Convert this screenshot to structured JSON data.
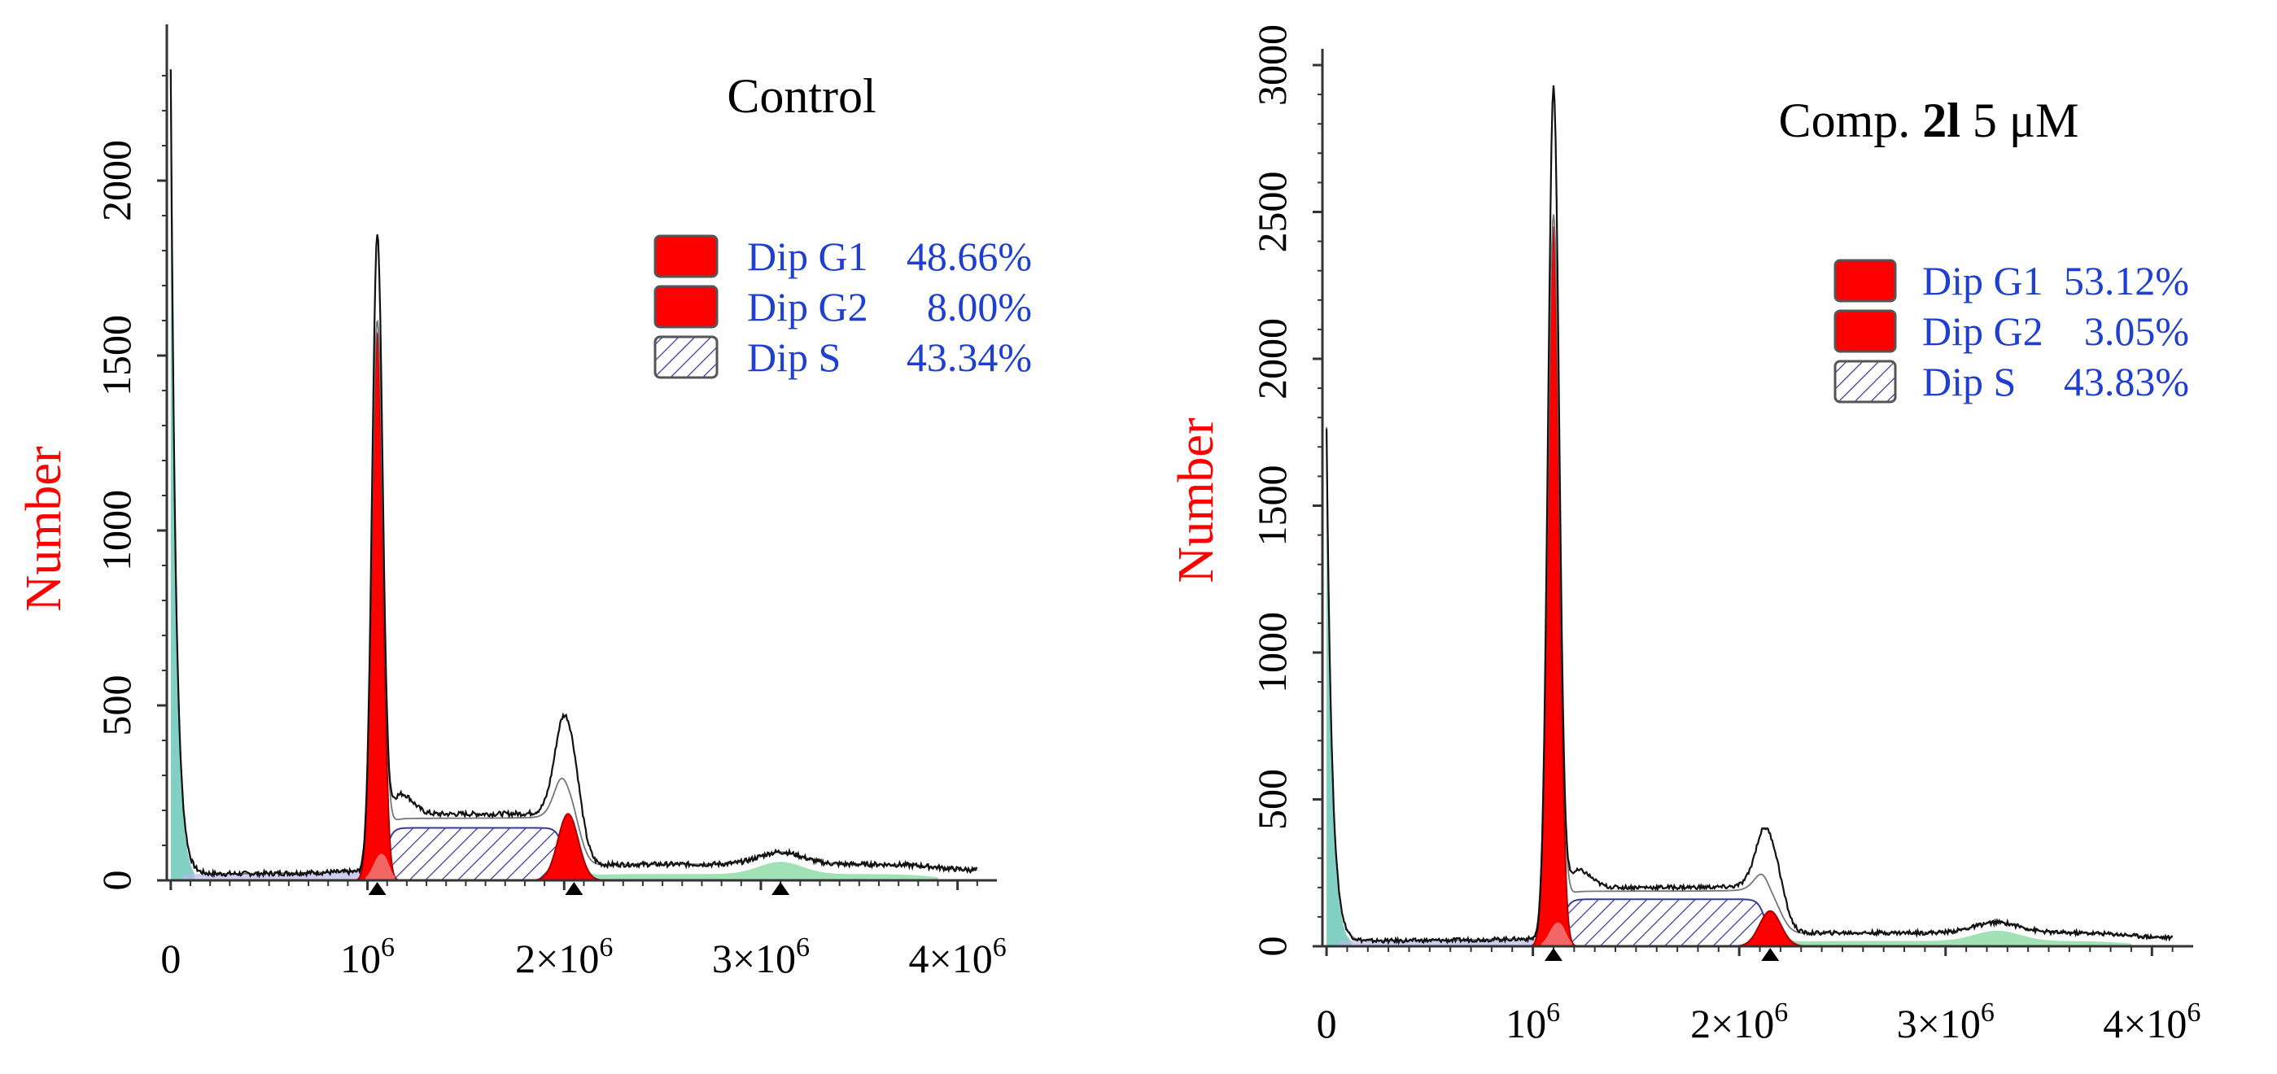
{
  "colors": {
    "red": "#ff0000",
    "legend_blue": "#1f3fd0",
    "teal": "#6cc8b8",
    "green": "#8fdca8",
    "lavender": "#b8b8e8",
    "hatch": "#3a3a9a",
    "axis": "#333333",
    "curve": "#111111"
  },
  "chart_data": [
    {
      "type": "area",
      "title": "Control",
      "ylabel": "Number",
      "xlabel": "",
      "xlim": [
        -20000,
        4200000
      ],
      "ylim": [
        0,
        2400
      ],
      "x_ticks": [
        {
          "value": 0,
          "label": "0"
        },
        {
          "value": 1000000,
          "label": "10",
          "sup": "6"
        },
        {
          "value": 2000000,
          "label": "2×10",
          "sup": "6"
        },
        {
          "value": 3000000,
          "label": "3×10",
          "sup": "6"
        },
        {
          "value": 4000000,
          "label": "4×10",
          "sup": "6"
        }
      ],
      "y_ticks": [
        0,
        500,
        1000,
        1500,
        2000
      ],
      "peaks": {
        "debris_max": 2300,
        "g1_center": 1050000,
        "g1_height": 1800,
        "g1_fit_height": 1560,
        "g2_center": 2020000,
        "g2_height": 380,
        "g2_fit_height": 190,
        "s_level": 150,
        "tail_center": 3100000,
        "tail_height": 35
      },
      "markers": [
        1050000,
        2050000,
        3100000
      ],
      "legend": [
        {
          "name": "Dip G1",
          "value": "48.66%",
          "style": "solid"
        },
        {
          "name": "Dip G2",
          "value": "8.00%",
          "style": "solid"
        },
        {
          "name": "Dip S",
          "value": "43.34%",
          "style": "hatched"
        }
      ]
    },
    {
      "type": "area",
      "title_prefix": "Comp. ",
      "title_bold": "2l",
      "title_suffix": " 5 μM",
      "ylabel": "Number",
      "xlabel": "",
      "xlim": [
        -20000,
        4200000
      ],
      "ylim": [
        0,
        3000
      ],
      "x_ticks": [
        {
          "value": 0,
          "label": "0"
        },
        {
          "value": 1000000,
          "label": "10",
          "sup": "6"
        },
        {
          "value": 2000000,
          "label": "2×10",
          "sup": "6"
        },
        {
          "value": 3000000,
          "label": "3×10",
          "sup": "6"
        },
        {
          "value": 4000000,
          "label": "4×10",
          "sup": "6"
        }
      ],
      "y_ticks": [
        0,
        500,
        1000,
        1500,
        2000,
        2500,
        3000
      ],
      "peaks": {
        "debris_max": 1750,
        "g1_center": 1100000,
        "g1_height": 2880,
        "g1_fit_height": 2450,
        "g2_center": 2150000,
        "g2_height": 300,
        "g2_fit_height": 120,
        "s_level": 160,
        "tail_center": 3250000,
        "tail_height": 35
      },
      "markers": [
        1100000,
        2150000
      ],
      "legend": [
        {
          "name": "Dip G1",
          "value": "53.12%",
          "style": "solid"
        },
        {
          "name": "Dip G2",
          "value": "3.05%",
          "style": "solid"
        },
        {
          "name": "Dip S",
          "value": "43.83%",
          "style": "hatched"
        }
      ]
    }
  ]
}
